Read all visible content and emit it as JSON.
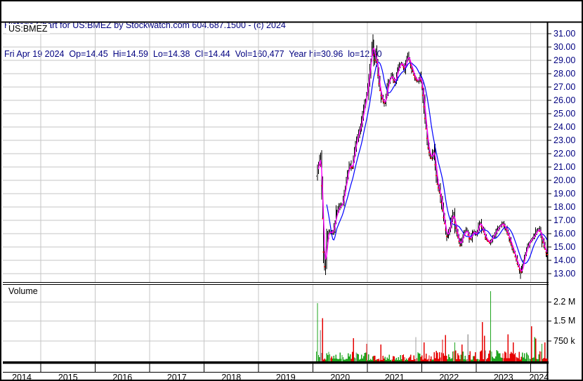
{
  "header": {
    "title_line": "Historic Chart for US:BMEZ by Stockwatch.com 604.687.1500 - (c) 2024",
    "quote_line": "Fri Apr 19 2024  Op=14.45  Hi=14.59  Lo=14.38  Cl=14.44  Vol=160,477  Year hi=30.96  lo=12.60"
  },
  "price_panel": {
    "symbol_label": "US:BMEZ"
  },
  "volume_panel": {
    "label": "Volume"
  },
  "colors": {
    "header_text": "#000080",
    "price_axis_text": "#000080",
    "volume_axis_text": "#000000",
    "year_text": "#000000",
    "grid": "#c6c6c6",
    "frame": "#000000",
    "candle": "#000000",
    "close_tick": "#ff0000",
    "ma_fast": "#ff00ff",
    "ma_slow": "#0000ff",
    "vol_up": "#1fa51f",
    "vol_down": "#e60000",
    "vol_neutral": "#a0a0a0",
    "background": "#ffffff"
  },
  "chart_data": {
    "type": "candlestick",
    "title": "Historic Chart for US:BMEZ by Stockwatch.com 604.687.1500 - (c) 2024",
    "symbol": "US:BMEZ",
    "quote": {
      "date": "Fri Apr 19 2024",
      "open": 14.45,
      "high": 14.59,
      "low": 14.38,
      "close": 14.44,
      "volume": "160,477",
      "year_high": 30.96,
      "year_low": 12.6
    },
    "price_axis": {
      "min": 13,
      "max": 31,
      "tick_step": 1,
      "tick_labels": [
        "31.00",
        "30.00",
        "29.00",
        "28.00",
        "27.00",
        "26.00",
        "25.00",
        "24.00",
        "23.00",
        "22.00",
        "21.00",
        "20.00",
        "19.00",
        "18.00",
        "17.00",
        "16.00",
        "15.00",
        "14.00",
        "13.00"
      ],
      "tick_values": [
        31,
        30,
        29,
        28,
        27,
        26,
        25,
        24,
        23,
        22,
        21,
        20,
        19,
        18,
        17,
        16,
        15,
        14,
        13
      ]
    },
    "volume_axis": {
      "tick_labels": [
        "2.2 M",
        "1.5 M",
        "750 k"
      ],
      "tick_values": [
        2200000,
        1500000,
        750000
      ]
    },
    "time_axis": {
      "year_labels": [
        "2014",
        "2015",
        "2016",
        "2017",
        "2018",
        "2019",
        "2020",
        "2021",
        "2022",
        "2023",
        "2024"
      ],
      "range_start": 2014.33,
      "range_end": 2024.3,
      "grid": "on"
    },
    "legend": "none",
    "series_lines": [
      {
        "name": "short moving average",
        "color": "#ff00ff"
      },
      {
        "name": "long moving average",
        "color": "#0000ff"
      }
    ],
    "extremes": {
      "year_high": 30.96,
      "year_low": 12.6,
      "low_2020": 12.9
    },
    "close_keyframes": [
      [
        2020.065,
        20.3
      ],
      [
        2020.09,
        21.0
      ],
      [
        2020.12,
        21.9
      ],
      [
        2020.15,
        20.8
      ],
      [
        2020.175,
        17.5
      ],
      [
        2020.2,
        14.2
      ],
      [
        2020.225,
        13.1
      ],
      [
        2020.25,
        15.6
      ],
      [
        2020.3,
        16.2
      ],
      [
        2020.36,
        16.0
      ],
      [
        2020.42,
        17.3
      ],
      [
        2020.48,
        18.0
      ],
      [
        2020.54,
        18.2
      ],
      [
        2020.6,
        19.6
      ],
      [
        2020.64,
        20.6
      ],
      [
        2020.68,
        21.3
      ],
      [
        2020.72,
        20.8
      ],
      [
        2020.76,
        22.2
      ],
      [
        2020.82,
        23.3
      ],
      [
        2020.88,
        24.2
      ],
      [
        2020.93,
        25.2
      ],
      [
        2020.98,
        26.3
      ],
      [
        2021.02,
        27.5
      ],
      [
        2021.06,
        29.0
      ],
      [
        2021.1,
        30.5
      ],
      [
        2021.13,
        28.8
      ],
      [
        2021.16,
        29.6
      ],
      [
        2021.2,
        27.6
      ],
      [
        2021.24,
        26.5
      ],
      [
        2021.28,
        26.0
      ],
      [
        2021.32,
        25.7
      ],
      [
        2021.38,
        27.3
      ],
      [
        2021.44,
        27.9
      ],
      [
        2021.5,
        27.3
      ],
      [
        2021.56,
        28.3
      ],
      [
        2021.62,
        28.9
      ],
      [
        2021.68,
        28.3
      ],
      [
        2021.74,
        29.4
      ],
      [
        2021.8,
        28.6
      ],
      [
        2021.86,
        27.8
      ],
      [
        2021.92,
        27.4
      ],
      [
        2021.97,
        27.9
      ],
      [
        2022.02,
        26.5
      ],
      [
        2022.07,
        24.2
      ],
      [
        2022.12,
        22.3
      ],
      [
        2022.17,
        21.6
      ],
      [
        2022.22,
        22.4
      ],
      [
        2022.28,
        19.8
      ],
      [
        2022.34,
        18.9
      ],
      [
        2022.4,
        17.2
      ],
      [
        2022.46,
        15.7
      ],
      [
        2022.52,
        16.6
      ],
      [
        2022.57,
        17.6
      ],
      [
        2022.63,
        16.3
      ],
      [
        2022.7,
        15.1
      ],
      [
        2022.76,
        15.9
      ],
      [
        2022.82,
        16.3
      ],
      [
        2022.88,
        15.5
      ],
      [
        2022.94,
        16.2
      ],
      [
        2023.0,
        15.9
      ],
      [
        2023.06,
        16.9
      ],
      [
        2023.12,
        16.3
      ],
      [
        2023.18,
        15.6
      ],
      [
        2023.25,
        15.3
      ],
      [
        2023.32,
        15.9
      ],
      [
        2023.4,
        16.4
      ],
      [
        2023.48,
        16.8
      ],
      [
        2023.54,
        16.4
      ],
      [
        2023.6,
        15.7
      ],
      [
        2023.67,
        14.9
      ],
      [
        2023.73,
        14.1
      ],
      [
        2023.79,
        13.3
      ],
      [
        2023.83,
        13.1
      ],
      [
        2023.88,
        14.2
      ],
      [
        2023.93,
        14.9
      ],
      [
        2023.98,
        15.4
      ],
      [
        2024.04,
        15.7
      ],
      [
        2024.1,
        16.1
      ],
      [
        2024.15,
        16.4
      ],
      [
        2024.19,
        15.9
      ],
      [
        2024.24,
        15.1
      ],
      [
        2024.28,
        14.6
      ],
      [
        2024.3,
        14.44
      ]
    ],
    "volume_spikes": [
      [
        2020.084,
        2150000,
        "up"
      ],
      [
        2020.148,
        1150000,
        "neutral"
      ],
      [
        2020.174,
        1600000,
        "down"
      ],
      [
        2020.75,
        860000,
        "down"
      ],
      [
        2020.99,
        650000,
        "down"
      ],
      [
        2021.245,
        620000,
        "down"
      ],
      [
        2021.89,
        900000,
        "neutral"
      ],
      [
        2022.045,
        700000,
        "down"
      ],
      [
        2022.38,
        800000,
        "down"
      ],
      [
        2022.445,
        980000,
        "down"
      ],
      [
        2022.6,
        700000,
        "up"
      ],
      [
        2022.73,
        620000,
        "down"
      ],
      [
        2022.845,
        1000000,
        "neutral"
      ],
      [
        2023.115,
        1450000,
        "down"
      ],
      [
        2023.155,
        950000,
        "down"
      ],
      [
        2023.27,
        2600000,
        "up"
      ],
      [
        2023.59,
        1000000,
        "down"
      ],
      [
        2023.67,
        700000,
        "down"
      ],
      [
        2024.02,
        1300000,
        "down"
      ],
      [
        2024.065,
        900000,
        "up"
      ],
      [
        2024.1,
        850000,
        "down"
      ],
      [
        2024.21,
        650000,
        "up"
      ],
      [
        2024.27,
        700000,
        "down"
      ]
    ]
  }
}
